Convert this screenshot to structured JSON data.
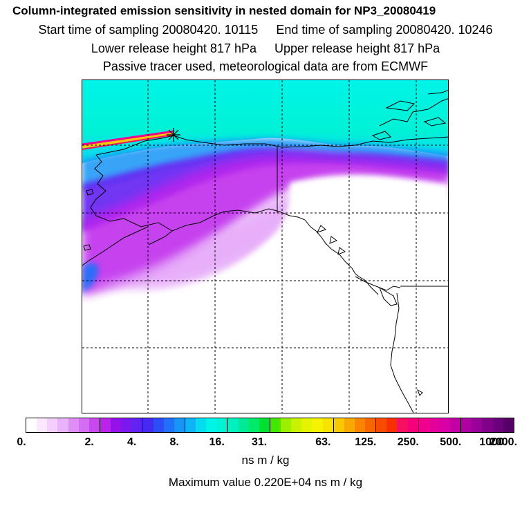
{
  "header": {
    "title": "Column-integrated emission sensitivity in nested domain for NP3_20080419",
    "start_label": "Start time of sampling 20080420. 10115",
    "end_label": "End time of sampling 20080420. 10246",
    "lower_label": "Lower release height  817 hPa",
    "upper_label": "Upper release height  817 hPa",
    "source_line": "Passive tracer used, meteorological data are from ECMWF"
  },
  "map": {
    "description_name": "emission-sensitivity-map",
    "release_marker": "asterisk-icon"
  },
  "colorbar": {
    "tick_labels": [
      "0.",
      "2.",
      "4.",
      "8.",
      "16.",
      "31.",
      "63.",
      "125.",
      "250.",
      "500.",
      "1000.",
      "2000."
    ],
    "segments": [
      "#ffffff",
      "#fbe8ff",
      "#f4cffd",
      "#eab2fb",
      "#de8ef7",
      "#d46cf4",
      "#c947ef",
      "#bc22ec",
      "#9412e8",
      "#7a18ee",
      "#6222f2",
      "#4629f3",
      "#2d4ef7",
      "#1f72f7",
      "#1895f7",
      "#10b4f6",
      "#06dcf0",
      "#00f4e8",
      "#00f2d6",
      "#00f0bf",
      "#00ea95",
      "#00ea6a",
      "#00e02e",
      "#44e700",
      "#9af000",
      "#c8f200",
      "#e3f300",
      "#f6f200",
      "#f8e200",
      "#f8c800",
      "#f8a800",
      "#f88400",
      "#f86600",
      "#f84a00",
      "#f83000",
      "#f81060",
      "#f6007e",
      "#f0008e",
      "#e4009a",
      "#d800a4",
      "#c300a4",
      "#b000a0",
      "#98009a",
      "#80008a",
      "#6c007c",
      "#560066"
    ],
    "units": "ns m / kg"
  },
  "footer": {
    "max_value_line": "Maximum value  0.220E+04 ns m / kg"
  }
}
